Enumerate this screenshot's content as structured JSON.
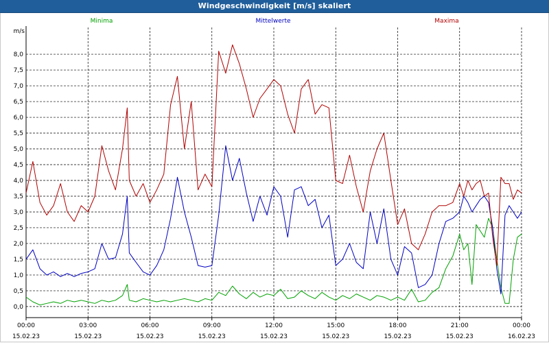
{
  "window": {
    "title": "Windgeschwindigkeit [m/s] skaliert"
  },
  "chart_data": {
    "type": "line",
    "title": "Windgeschwindigkeit [m/s] skaliert",
    "ylabel": "m/s",
    "ylim": [
      -0.35,
      8.85
    ],
    "xlim": [
      0,
      24
    ],
    "yticks": [
      "0,0",
      "0,5",
      "1,0",
      "1,5",
      "2,0",
      "2,5",
      "3,0",
      "3,5",
      "4,0",
      "4,5",
      "5,0",
      "5,5",
      "6,0",
      "6,5",
      "7,0",
      "7,5",
      "8,0"
    ],
    "ytick_values": [
      0,
      0.5,
      1,
      1.5,
      2,
      2.5,
      3,
      3.5,
      4,
      4.5,
      5,
      5.5,
      6,
      6.5,
      7,
      7.5,
      8
    ],
    "xticks": [
      {
        "x": 0,
        "time": "00:00",
        "date": "15.02.23"
      },
      {
        "x": 3,
        "time": "03:00",
        "date": "15.02.23"
      },
      {
        "x": 6,
        "time": "06:00",
        "date": "15.02.23"
      },
      {
        "x": 9,
        "time": "09:00",
        "date": "15.02.23"
      },
      {
        "x": 12,
        "time": "12:00",
        "date": "15.02.23"
      },
      {
        "x": 15,
        "time": "15:00",
        "date": "15.02.23"
      },
      {
        "x": 18,
        "time": "18:00",
        "date": "15.02.23"
      },
      {
        "x": 21,
        "time": "21:00",
        "date": "15.02.23"
      },
      {
        "x": 24,
        "time": "00:00",
        "date": "16.02.23"
      }
    ],
    "grid": true,
    "series": [
      {
        "name": "Minima",
        "color": "#00a000",
        "legend_position": "top-left",
        "x": [
          0,
          0.33,
          0.67,
          1,
          1.33,
          1.67,
          2,
          2.33,
          2.67,
          3,
          3.33,
          3.67,
          4,
          4.33,
          4.67,
          4.9,
          5,
          5.33,
          5.67,
          6,
          6.33,
          6.67,
          7,
          7.33,
          7.67,
          8,
          8.33,
          8.67,
          9,
          9.33,
          9.67,
          10,
          10.33,
          10.67,
          11,
          11.33,
          11.67,
          12,
          12.33,
          12.67,
          13,
          13.33,
          13.67,
          14,
          14.33,
          14.67,
          15,
          15.33,
          15.67,
          16,
          16.33,
          16.67,
          17,
          17.33,
          17.67,
          18,
          18.33,
          18.67,
          19,
          19.33,
          19.67,
          20,
          20.33,
          20.67,
          21,
          21.2,
          21.4,
          21.6,
          21.8,
          22,
          22.2,
          22.4,
          22.6,
          22.8,
          23,
          23.2,
          23.4,
          23.6,
          23.8,
          24
        ],
        "values": [
          0.3,
          0.15,
          0.05,
          0.1,
          0.15,
          0.1,
          0.2,
          0.15,
          0.2,
          0.15,
          0.1,
          0.2,
          0.15,
          0.2,
          0.35,
          0.7,
          0.2,
          0.15,
          0.25,
          0.2,
          0.15,
          0.2,
          0.15,
          0.2,
          0.25,
          0.2,
          0.15,
          0.25,
          0.2,
          0.45,
          0.35,
          0.65,
          0.4,
          0.25,
          0.45,
          0.3,
          0.4,
          0.35,
          0.55,
          0.25,
          0.3,
          0.5,
          0.35,
          0.25,
          0.45,
          0.3,
          0.2,
          0.35,
          0.25,
          0.4,
          0.3,
          0.2,
          0.35,
          0.3,
          0.2,
          0.3,
          0.2,
          0.55,
          0.15,
          0.2,
          0.45,
          0.6,
          1.2,
          1.6,
          2.3,
          1.8,
          2.0,
          0.7,
          2.6,
          2.4,
          2.2,
          2.8,
          2.5,
          1.5,
          0.6,
          0.1,
          0.1,
          1.5,
          2.2,
          2.3
        ]
      },
      {
        "name": "Mittelwerte",
        "color": "#0000c0",
        "legend_position": "top-center",
        "x": [
          0,
          0.33,
          0.67,
          1,
          1.33,
          1.67,
          2,
          2.33,
          2.67,
          3,
          3.33,
          3.67,
          4,
          4.33,
          4.67,
          4.9,
          5,
          5.33,
          5.67,
          6,
          6.33,
          6.67,
          7,
          7.33,
          7.67,
          8,
          8.33,
          8.67,
          9,
          9.33,
          9.67,
          10,
          10.33,
          10.67,
          11,
          11.33,
          11.67,
          12,
          12.33,
          12.67,
          13,
          13.33,
          13.67,
          14,
          14.33,
          14.67,
          15,
          15.33,
          15.67,
          16,
          16.33,
          16.67,
          17,
          17.33,
          17.67,
          18,
          18.33,
          18.67,
          19,
          19.33,
          19.67,
          20,
          20.33,
          20.67,
          21,
          21.2,
          21.4,
          21.6,
          21.8,
          22,
          22.2,
          22.4,
          22.6,
          22.8,
          23,
          23.2,
          23.4,
          23.6,
          23.8,
          24
        ],
        "values": [
          1.5,
          1.8,
          1.2,
          1.0,
          1.1,
          0.95,
          1.05,
          0.95,
          1.05,
          1.1,
          1.2,
          2.0,
          1.5,
          1.55,
          2.3,
          3.5,
          1.7,
          1.4,
          1.1,
          1.0,
          1.3,
          1.8,
          2.8,
          4.1,
          3.0,
          2.2,
          1.3,
          1.25,
          1.3,
          2.9,
          5.1,
          4.0,
          4.7,
          3.6,
          2.7,
          3.5,
          2.9,
          3.8,
          3.5,
          2.2,
          3.7,
          3.8,
          3.2,
          3.4,
          2.5,
          2.9,
          1.3,
          1.5,
          2.0,
          1.4,
          1.2,
          3.0,
          2.0,
          3.1,
          1.5,
          1.0,
          1.9,
          1.7,
          0.6,
          0.7,
          1.0,
          2.0,
          2.7,
          2.8,
          3.0,
          3.5,
          3.3,
          3.0,
          3.2,
          3.4,
          3.5,
          3.3,
          2.5,
          1.2,
          0.4,
          2.9,
          3.2,
          3.0,
          2.8,
          3.0
        ]
      },
      {
        "name": "Maxima",
        "color": "#b00000",
        "legend_position": "top-right",
        "x": [
          0,
          0.33,
          0.67,
          1,
          1.33,
          1.67,
          2,
          2.33,
          2.67,
          3,
          3.33,
          3.67,
          4,
          4.33,
          4.67,
          4.9,
          5,
          5.33,
          5.67,
          6,
          6.33,
          6.67,
          7,
          7.33,
          7.67,
          8,
          8.33,
          8.67,
          9,
          9.33,
          9.67,
          10,
          10.33,
          10.67,
          11,
          11.33,
          11.67,
          12,
          12.33,
          12.67,
          13,
          13.33,
          13.67,
          14,
          14.33,
          14.67,
          15,
          15.33,
          15.67,
          16,
          16.33,
          16.67,
          17,
          17.33,
          17.67,
          18,
          18.33,
          18.67,
          19,
          19.33,
          19.67,
          20,
          20.33,
          20.67,
          21,
          21.2,
          21.4,
          21.6,
          21.8,
          22,
          22.2,
          22.4,
          22.6,
          22.8,
          23,
          23.2,
          23.4,
          23.6,
          23.8,
          24
        ],
        "values": [
          3.6,
          4.6,
          3.3,
          2.9,
          3.2,
          3.9,
          3.0,
          2.7,
          3.2,
          3.0,
          3.5,
          5.1,
          4.3,
          3.7,
          5.0,
          6.3,
          4.0,
          3.5,
          3.9,
          3.3,
          3.7,
          4.2,
          6.4,
          7.3,
          5.0,
          6.5,
          3.7,
          4.2,
          3.8,
          8.1,
          7.4,
          8.3,
          7.7,
          6.9,
          6.0,
          6.6,
          6.9,
          7.2,
          7.0,
          6.1,
          5.5,
          6.9,
          7.2,
          6.1,
          6.4,
          6.3,
          4.0,
          3.9,
          4.8,
          3.8,
          3.0,
          4.3,
          5.0,
          5.5,
          4.0,
          2.6,
          3.1,
          2.0,
          1.8,
          2.3,
          3.0,
          3.2,
          3.2,
          3.3,
          3.9,
          3.5,
          4.0,
          3.7,
          3.9,
          4.0,
          3.5,
          3.6,
          2.2,
          1.3,
          4.1,
          3.9,
          3.9,
          3.4,
          3.7,
          3.6
        ]
      }
    ]
  }
}
